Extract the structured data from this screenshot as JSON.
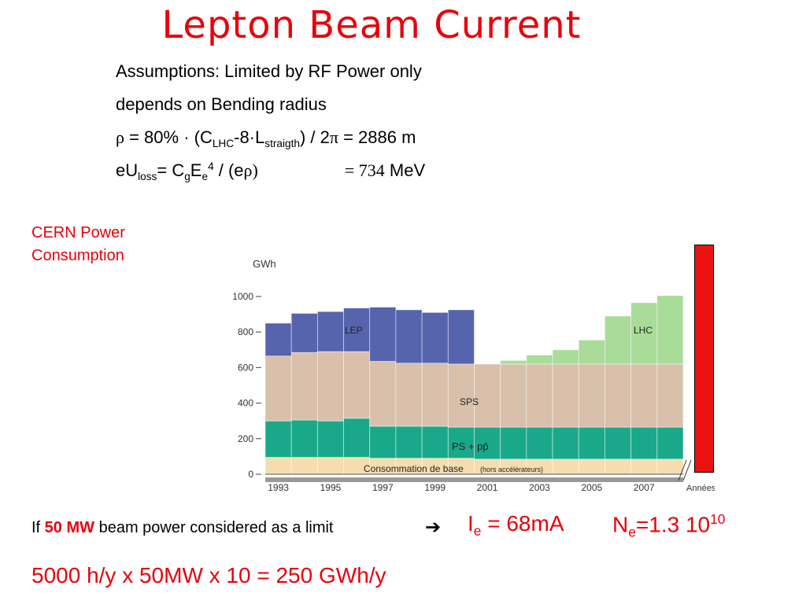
{
  "title": "Lepton Beam Current",
  "lines": {
    "l1": "Assumptions: Limited by RF Power only",
    "l2": "depends on Bending radius",
    "rho_sym": "ρ",
    "rho_eq": " =  80% · (C",
    "rho_sub1": "LHC",
    "rho_mid": "-8·L",
    "rho_sub2": "straigth",
    "rho_end": ") / 2",
    "pi_sym": "π",
    "rho_result": " = 2886 m",
    "eu_a": "eU",
    "eu_sub1": "loss",
    "eu_b": "= C",
    "eu_sub2": "g",
    "eu_c": "E",
    "eu_sub3": "e",
    "eu_sup": "4",
    "eu_d": " / (e",
    "eu_rho": "ρ)",
    "eu_eq": "= 734",
    "eu_unit": " MeV"
  },
  "cern_label": [
    "CERN Power",
    "Consumption"
  ],
  "bottom_line": {
    "if_a": "If ",
    "if_b": "50 MW",
    "if_c": " beam power considered as a limit",
    "arrow": "➔",
    "ie_a": "I",
    "ie_sub": "e",
    "ie_b": " = 68mA",
    "ne_a": "N",
    "ne_sub": "e",
    "ne_b": "=1.3 10",
    "ne_sup": "10",
    "gwh": "5000 h/y x 50MW x 10 = 250 GWh/y"
  },
  "chart_data": {
    "type": "bar",
    "stacked": true,
    "ylabel": "GWh",
    "xlabel_end": "Années",
    "ylim": [
      0,
      1000
    ],
    "yticks": [
      0,
      200,
      400,
      600,
      800,
      1000
    ],
    "ytick_labels": [
      "0",
      "200",
      "400",
      "600",
      "800",
      "1000"
    ],
    "categories": [
      1993,
      1994,
      1995,
      1996,
      1997,
      1998,
      1999,
      2000,
      2001,
      2002,
      2003,
      2004,
      2005,
      2006,
      2007,
      2008
    ],
    "xtick_labels": [
      "1993",
      "1995",
      "1997",
      "1999",
      "2001",
      "2003",
      "2005",
      "2007"
    ],
    "series": [
      {
        "name": "Consommation de base",
        "note": "(hors accélérateurs)",
        "color": "#f5ddb0",
        "values": [
          95,
          95,
          95,
          95,
          90,
          90,
          90,
          90,
          85,
          85,
          85,
          85,
          85,
          85,
          85,
          85
        ]
      },
      {
        "name": "PS + pp̄",
        "color": "#1aa88a",
        "values": [
          205,
          210,
          205,
          220,
          180,
          180,
          180,
          175,
          180,
          180,
          180,
          180,
          180,
          180,
          180,
          180
        ]
      },
      {
        "name": "SPS",
        "color": "#d8c0aa",
        "values": [
          365,
          380,
          390,
          375,
          365,
          355,
          355,
          355,
          355,
          355,
          355,
          355,
          355,
          355,
          355,
          355
        ]
      },
      {
        "name": "LEP",
        "color": "#5664ad",
        "values": [
          185,
          220,
          225,
          245,
          305,
          300,
          285,
          305,
          0,
          0,
          0,
          0,
          0,
          0,
          0,
          0
        ]
      },
      {
        "name": "LHC",
        "color": "#a8dc98",
        "values": [
          0,
          0,
          0,
          0,
          0,
          0,
          0,
          0,
          0,
          20,
          50,
          80,
          135,
          270,
          345,
          385
        ]
      }
    ]
  },
  "colors": {
    "accent_red": "#e8000b",
    "side_bar": "#ee1111"
  }
}
